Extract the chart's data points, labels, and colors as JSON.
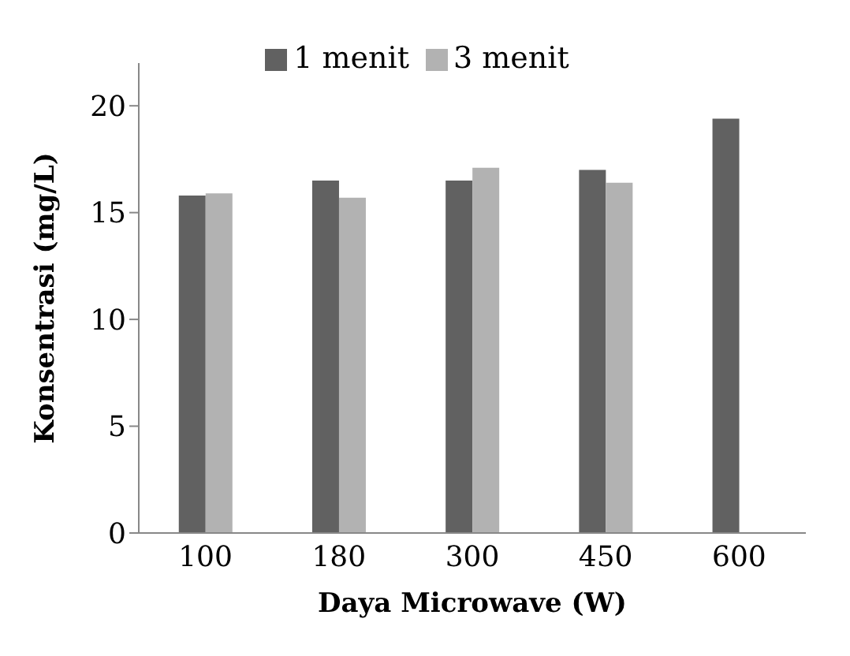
{
  "chart_data": {
    "type": "bar",
    "xlabel": "Daya Microwave (W)",
    "ylabel": "Konsentrasi (mg/L)",
    "categories": [
      "100",
      "180",
      "300",
      "450",
      "600"
    ],
    "series": [
      {
        "name": "1 menit",
        "color": "#616161",
        "values": [
          15.8,
          16.5,
          16.5,
          17.0,
          19.4
        ]
      },
      {
        "name": "3 menit",
        "color": "#b2b2b2",
        "values": [
          15.9,
          15.7,
          17.1,
          16.4,
          null
        ]
      }
    ],
    "ylim": [
      0,
      22
    ],
    "yticks": [
      0,
      5,
      10,
      15,
      20
    ],
    "grid": false,
    "legend": "top"
  }
}
